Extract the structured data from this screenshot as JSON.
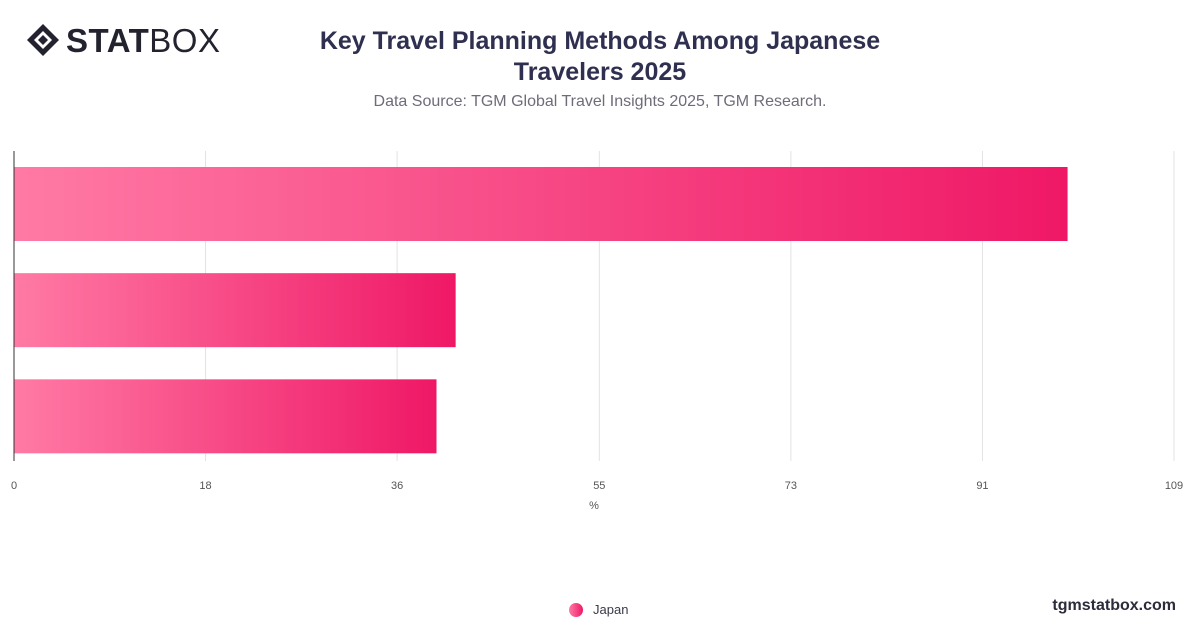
{
  "brand": {
    "logo_strong": "STAT",
    "logo_light": "BOX",
    "url": "tgmstatbox.com"
  },
  "colors": {
    "bar_start": "#ff7aa5",
    "bar_end": "#ef1866",
    "grid": "#e3e3e3",
    "axis": "#333333"
  },
  "chart_data": {
    "type": "bar",
    "orientation": "horizontal",
    "title": "Key Travel Planning Methods Among Japanese Travelers 2025",
    "subtitle": "Data Source: TGM Global Travel Insights 2025, TGM Research.",
    "xlabel": "%",
    "ylabel": "",
    "xlim": [
      0,
      109
    ],
    "ticks": [
      0,
      18,
      36,
      55,
      73,
      91,
      109
    ],
    "categories": [
      "",
      "",
      ""
    ],
    "series": [
      {
        "name": "Japan",
        "values": [
          99,
          41.5,
          39.7
        ]
      }
    ],
    "grid": true,
    "legend_position": "bottom"
  }
}
